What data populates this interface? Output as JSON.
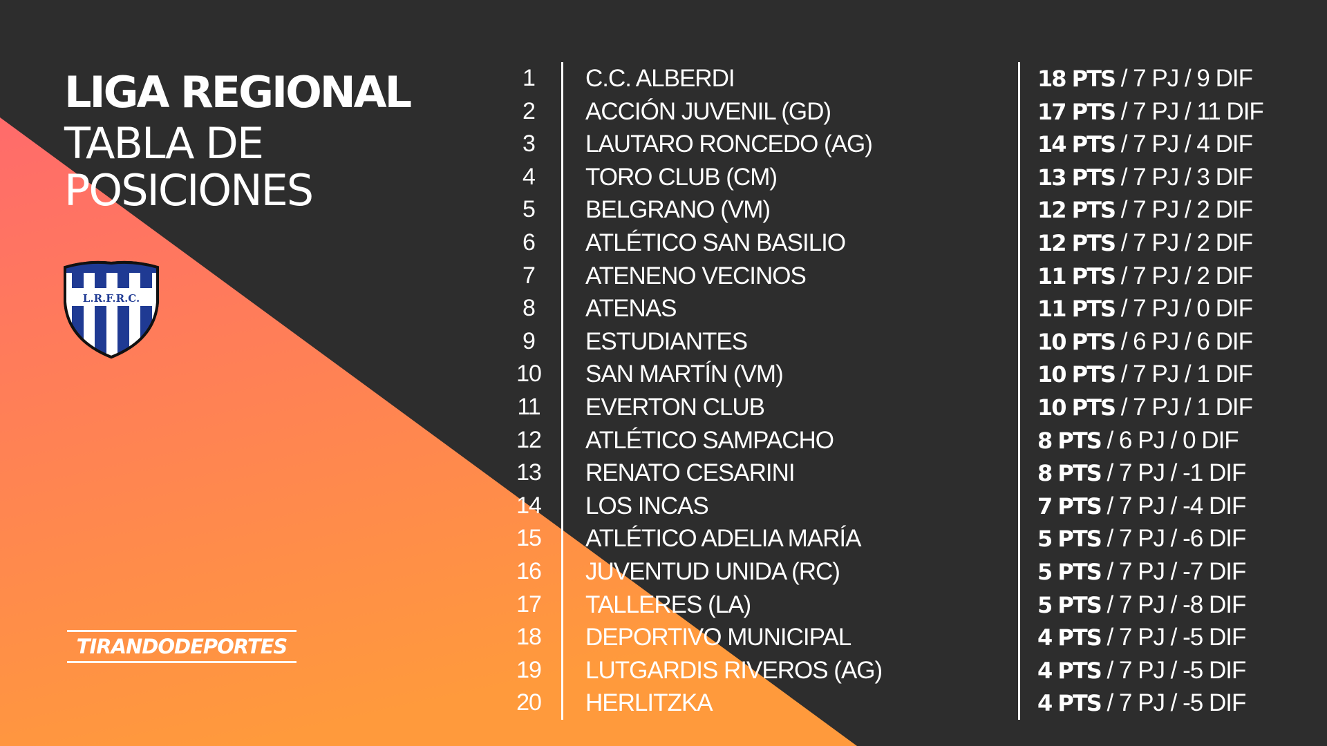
{
  "header": {
    "title": "LIGA REGIONAL",
    "subtitle": "TABLA DE POSICIONES"
  },
  "logo": {
    "text": "L.R.F.R.C."
  },
  "brand": {
    "text": "TIRANDODEPORTES"
  },
  "colors": {
    "background": "#2d2d2d",
    "gradient_top": "#ff6b6b",
    "gradient_bottom": "#ff9a3c",
    "crest_blue": "#1f3a93"
  },
  "standings": [
    {
      "pos": "1",
      "team": "C.C. ALBERDI",
      "pts": "18 PTS",
      "rest": " / 7 PJ / 9 DIF"
    },
    {
      "pos": "2",
      "team": "ACCIÓN JUVENIL (GD)",
      "pts": "17 PTS",
      "rest": " / 7 PJ / 11 DIF"
    },
    {
      "pos": "3",
      "team": "LAUTARO RONCEDO (AG)",
      "pts": "14 PTS",
      "rest": " / 7 PJ / 4 DIF"
    },
    {
      "pos": "4",
      "team": "TORO CLUB (CM)",
      "pts": "13 PTS",
      "rest": " / 7 PJ / 3 DIF"
    },
    {
      "pos": "5",
      "team": "BELGRANO (VM)",
      "pts": "12 PTS",
      "rest": " / 7 PJ / 2 DIF"
    },
    {
      "pos": "6",
      "team": "ATLÉTICO SAN BASILIO",
      "pts": "12 PTS",
      "rest": " / 7 PJ / 2 DIF"
    },
    {
      "pos": "7",
      "team": "ATENENO VECINOS",
      "pts": "11 PTS",
      "rest": " / 7 PJ / 2 DIF"
    },
    {
      "pos": "8",
      "team": "ATENAS",
      "pts": "11 PTS",
      "rest": " / 7 PJ / 0 DIF"
    },
    {
      "pos": "9",
      "team": "ESTUDIANTES",
      "pts": "10 PTS",
      "rest": " / 6 PJ / 6 DIF"
    },
    {
      "pos": "10",
      "team": "SAN MARTÍN (VM)",
      "pts": "10 PTS",
      "rest": " / 7 PJ / 1 DIF"
    },
    {
      "pos": "11",
      "team": "EVERTON CLUB",
      "pts": "10 PTS",
      "rest": " / 7 PJ / 1 DIF"
    },
    {
      "pos": "12",
      "team": "ATLÉTICO SAMPACHO",
      "pts": "8 PTS",
      "rest": " / 6 PJ / 0 DIF"
    },
    {
      "pos": "13",
      "team": "RENATO CESARINI",
      "pts": "8 PTS",
      "rest": " / 7 PJ / -1 DIF"
    },
    {
      "pos": "14",
      "team": "LOS INCAS",
      "pts": "7 PTS",
      "rest": " / 7 PJ / -4 DIF"
    },
    {
      "pos": "15",
      "team": "ATLÉTICO ADELIA MARÍA",
      "pts": "5 PTS",
      "rest": " / 7 PJ / -6 DIF"
    },
    {
      "pos": "16",
      "team": "JUVENTUD UNIDA (RC)",
      "pts": "5 PTS",
      "rest": " / 7 PJ / -7 DIF"
    },
    {
      "pos": "17",
      "team": "TALLERES (LA)",
      "pts": "5 PTS",
      "rest": " / 7 PJ / -8 DIF"
    },
    {
      "pos": "18",
      "team": "DEPORTIVO MUNICIPAL",
      "pts": "4 PTS",
      "rest": " / 7 PJ / -5 DIF"
    },
    {
      "pos": "19",
      "team": "LUTGARDIS RIVEROS (AG)",
      "pts": "4 PTS",
      "rest": " / 7 PJ / -5 DIF"
    },
    {
      "pos": "20",
      "team": "HERLITZKA",
      "pts": "4 PTS",
      "rest": " / 7 PJ / -5 DIF"
    }
  ]
}
